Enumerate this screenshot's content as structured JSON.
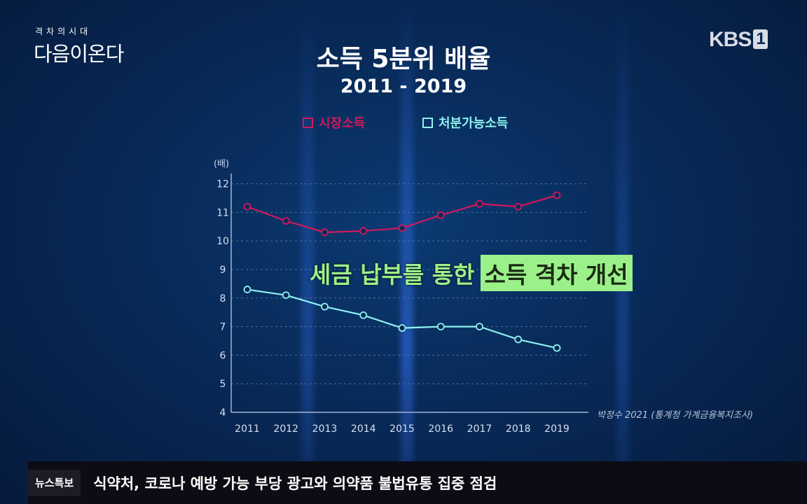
{
  "program_logo": {
    "top": "격차의시대",
    "main": "다음이온다"
  },
  "broadcaster": {
    "name": "KBS",
    "channel": "1"
  },
  "colors": {
    "market": "#d0195b",
    "disposable": "#8ff0ef",
    "highlight": "#9cf08a"
  },
  "chart_data": {
    "type": "line",
    "title": "소득 5분위 배율",
    "subtitle": "2011 - 2019",
    "ylabel": "(배)",
    "ylim": [
      4,
      12
    ],
    "yticks": [
      4,
      5,
      6,
      7,
      8,
      9,
      10,
      11,
      12
    ],
    "x": [
      "2011",
      "2012",
      "2013",
      "2014",
      "2015",
      "2016",
      "2017",
      "2018",
      "2019"
    ],
    "series": [
      {
        "name": "시장소득",
        "values": [
          11.2,
          10.7,
          10.3,
          10.35,
          10.45,
          10.9,
          11.3,
          11.2,
          11.6
        ]
      },
      {
        "name": "처분가능소득",
        "values": [
          8.3,
          8.1,
          7.7,
          7.4,
          6.95,
          7.0,
          7.0,
          6.55,
          6.25
        ]
      }
    ],
    "annotation": {
      "lead": "세금 납부를 통한",
      "highlight": "소득 격차 개선"
    },
    "source": "박정수 2021 (통계청 가계금융복지조사)"
  },
  "ticker": {
    "label": "뉴스특보",
    "text": "식약처, 코로나 예방 가능 부당 광고와 의약품 불법유통 집중 점검"
  }
}
